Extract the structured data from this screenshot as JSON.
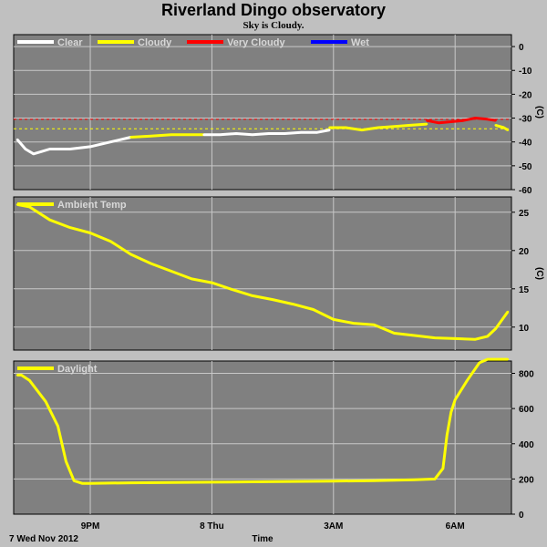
{
  "title": "Riverland Dingo observatory",
  "subtitle": "Sky is Cloudy.",
  "footer_date": "7 Wed Nov 2012",
  "x_axis_label": "Time",
  "colors": {
    "background": "#c0c0c0",
    "panel": "#808080",
    "grid": "#c8c8c8",
    "clear": "#ffffff",
    "cloudy": "#ffff00",
    "very_cloudy": "#ff0000",
    "wet": "#0000ff"
  },
  "x_ticks": [
    "9PM",
    "8 Thu",
    "3AM",
    "6AM"
  ],
  "chart_data": [
    {
      "type": "line",
      "panel": "sky",
      "ylabel": "(C)",
      "ylim": [
        -60,
        5
      ],
      "yticks": [
        0,
        -10,
        -20,
        -30,
        -40,
        -50,
        -60
      ],
      "legend": [
        "Clear",
        "Cloudy",
        "Very Cloudy",
        "Wet"
      ],
      "thresholds": [
        {
          "value": -30.5,
          "color": "#ff0000"
        },
        {
          "value": -34.5,
          "color": "#ffff00"
        }
      ],
      "x_range": [
        19.2,
        31.3
      ],
      "series": [
        {
          "name": "Clear",
          "x": [
            19.2,
            19.4,
            19.6,
            19.8,
            20.0,
            20.5,
            21.0,
            21.5,
            22.0
          ],
          "y": [
            -39,
            -43,
            -45,
            -44,
            -43,
            -43,
            -42,
            -40,
            -38
          ]
        },
        {
          "name": "Cloudy",
          "x": [
            22.0,
            22.5,
            23.0,
            23.5,
            23.8
          ],
          "y": [
            -38,
            -37.5,
            -37,
            -37,
            -37
          ]
        },
        {
          "name": "Clear",
          "x": [
            23.8,
            24.2,
            24.6,
            25.0,
            25.4,
            25.8,
            26.2,
            26.6,
            26.9
          ],
          "y": [
            -37,
            -37,
            -36.5,
            -37,
            -36.5,
            -36.5,
            -36,
            -36,
            -35
          ]
        },
        {
          "name": "Cloudy",
          "x": [
            26.9,
            27.3,
            27.7,
            28.1,
            28.5,
            28.9,
            29.3
          ],
          "y": [
            -34,
            -34,
            -35,
            -34,
            -33.5,
            -33,
            -32.5
          ]
        },
        {
          "name": "Very Cloudy",
          "x": [
            29.3,
            29.6,
            29.9,
            30.2,
            30.5,
            30.8,
            31.0
          ],
          "y": [
            -31,
            -32,
            -31.5,
            -31,
            -30,
            -30.5,
            -31
          ]
        },
        {
          "name": "Cloudy",
          "x": [
            31.0,
            31.2,
            31.3
          ],
          "y": [
            -33,
            -34,
            -35
          ]
        }
      ]
    },
    {
      "type": "line",
      "panel": "ambient",
      "ylabel": "(C)",
      "ylim": [
        7,
        27
      ],
      "yticks": [
        25,
        20,
        15,
        10
      ],
      "legend": [
        "Ambient Temp"
      ],
      "x_range": [
        19.2,
        31.3
      ],
      "series": [
        {
          "name": "Ambient Temp",
          "x": [
            19.2,
            19.5,
            20.0,
            20.5,
            21.0,
            21.5,
            22.0,
            22.5,
            23.0,
            23.5,
            24.0,
            24.5,
            25.0,
            25.5,
            26.0,
            26.5,
            27.0,
            27.5,
            28.0,
            28.5,
            29.0,
            29.5,
            30.0,
            30.5,
            30.8,
            31.0,
            31.3
          ],
          "y": [
            26,
            25.7,
            24,
            23,
            22.3,
            21.2,
            19.5,
            18.3,
            17.3,
            16.3,
            15.8,
            14.9,
            14.1,
            13.6,
            13,
            12.3,
            11,
            10.5,
            10.3,
            9.2,
            8.9,
            8.6,
            8.5,
            8.4,
            8.8,
            9.8,
            12
          ]
        }
      ]
    },
    {
      "type": "line",
      "panel": "daylight",
      "ylabel": "",
      "ylim": [
        0,
        870
      ],
      "yticks": [
        800,
        600,
        400,
        200,
        0
      ],
      "legend": [
        "Daylight"
      ],
      "x_range": [
        19.2,
        31.3
      ],
      "series": [
        {
          "name": "Daylight",
          "x": [
            19.2,
            19.3,
            19.5,
            19.7,
            19.9,
            20.2,
            20.4,
            20.6,
            20.8,
            21.0,
            22.0,
            23.0,
            24.0,
            25.0,
            26.0,
            27.0,
            28.0,
            29.0,
            29.5,
            29.7,
            29.8,
            29.9,
            30.0,
            30.3,
            30.6,
            30.8,
            31.0,
            31.3
          ],
          "y": [
            790,
            790,
            760,
            700,
            640,
            500,
            300,
            190,
            175,
            175,
            178,
            180,
            182,
            184,
            186,
            188,
            190,
            195,
            200,
            260,
            450,
            580,
            650,
            760,
            860,
            880,
            880,
            880
          ]
        }
      ]
    }
  ]
}
